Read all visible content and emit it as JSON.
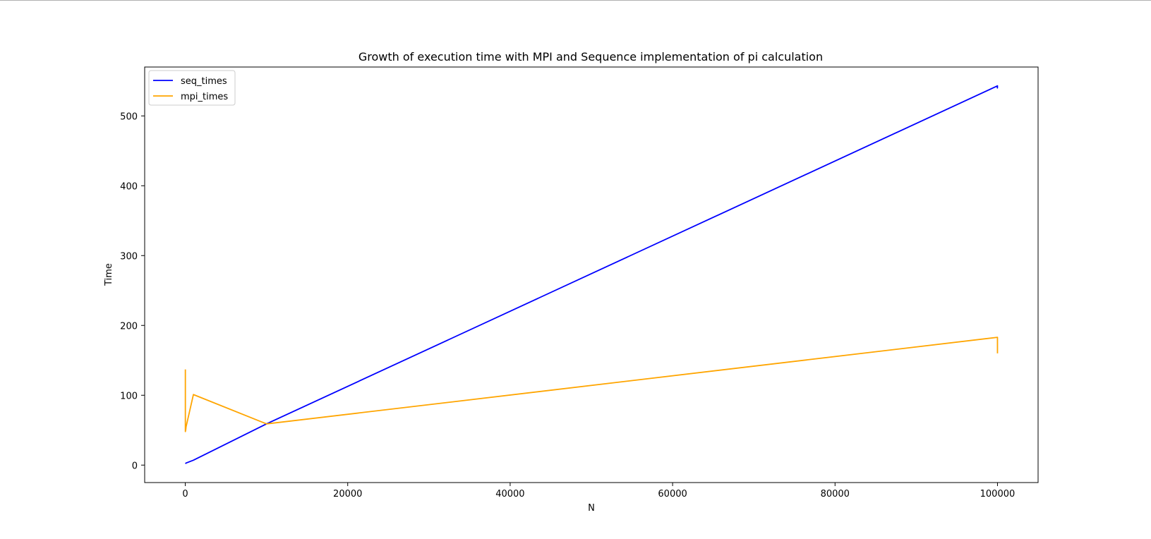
{
  "chart_data": {
    "type": "line",
    "title": "Growth of execution time with MPI and Sequence implementation of pi calculation",
    "xlabel": "N",
    "ylabel": "Time",
    "xlim": [
      -5000,
      105000
    ],
    "ylim": [
      -25,
      570
    ],
    "xticks": [
      0,
      20000,
      40000,
      60000,
      80000,
      100000
    ],
    "xtick_labels": [
      "0",
      "20000",
      "40000",
      "60000",
      "80000",
      "100000"
    ],
    "yticks": [
      0,
      100,
      200,
      300,
      400,
      500
    ],
    "ytick_labels": [
      "0",
      "100",
      "200",
      "300",
      "400",
      "500"
    ],
    "grid": false,
    "legend": "top-left",
    "series": [
      {
        "name": "seq_times",
        "color": "#0000ff",
        "x": [
          10,
          100,
          1000,
          10000,
          100000,
          99990,
          100000
        ],
        "y": [
          2,
          3,
          7,
          59,
          543,
          540,
          541
        ]
      },
      {
        "name": "mpi_times",
        "color": "#ffa500",
        "x": [
          10,
          10,
          50,
          100,
          1000,
          10000,
          100000,
          100000
        ],
        "y": [
          137,
          48,
          50,
          55,
          101,
          59,
          183,
          160
        ]
      }
    ]
  }
}
